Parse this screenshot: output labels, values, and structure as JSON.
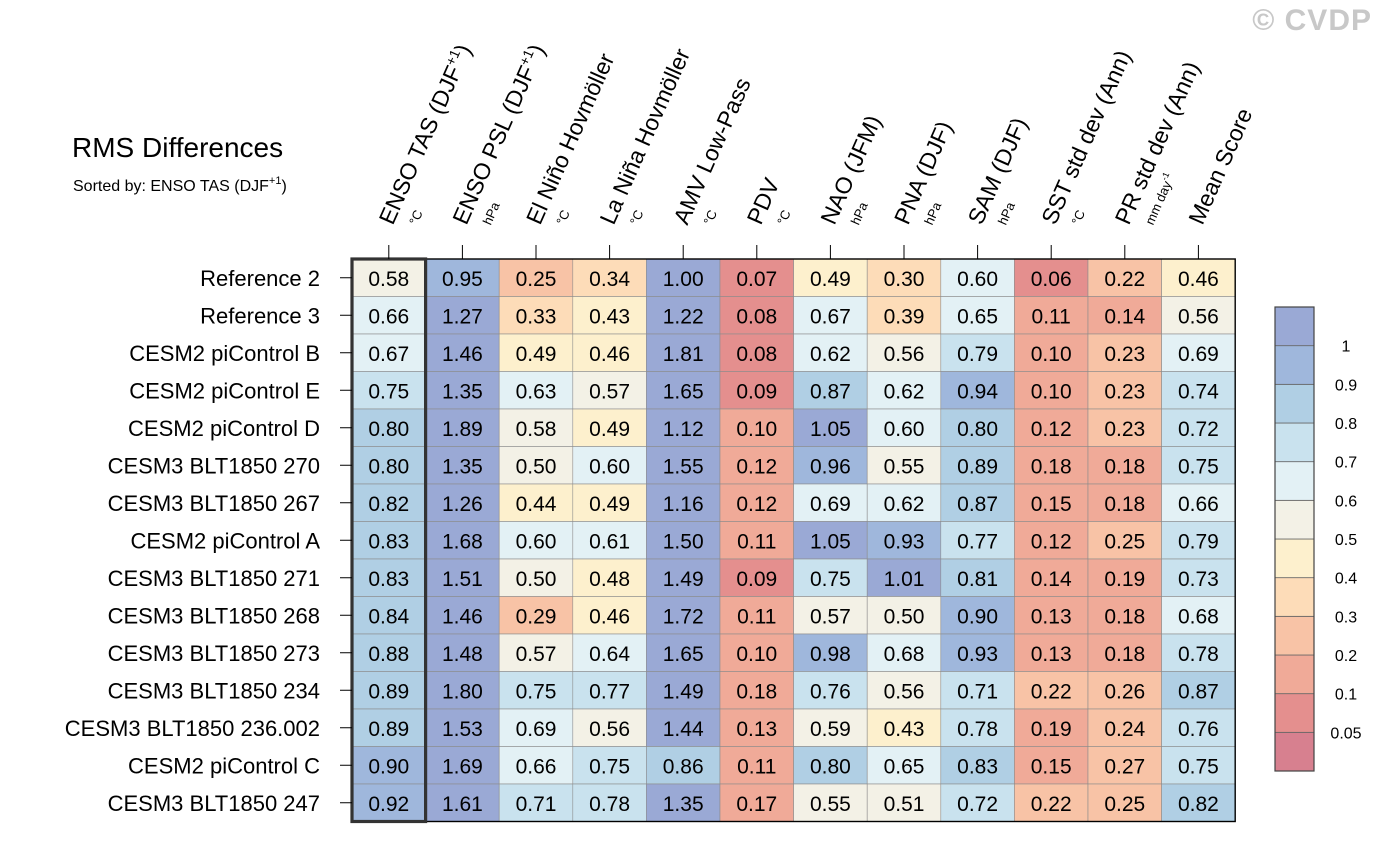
{
  "chart_data": {
    "type": "heatmap",
    "title": "RMS Differences",
    "subtitle": {
      "prefix": "Sorted by: ENSO TAS (DJF",
      "sup": "+1",
      "suffix": ")"
    },
    "watermark": "© CVDP",
    "columns": [
      {
        "label": "ENSO TAS (DJF",
        "sup": "+1",
        "close": ")",
        "unit": "°C"
      },
      {
        "label": "ENSO PSL (DJF",
        "sup": "+1",
        "close": ")",
        "unit": "hPa"
      },
      {
        "label": "El Niño Hovmöller",
        "unit": "°C"
      },
      {
        "label": "La Niña Hovmöller",
        "unit": "°C"
      },
      {
        "label": "AMV Low-Pass",
        "unit": "°C"
      },
      {
        "label": "PDV",
        "unit": "°C"
      },
      {
        "label": "NAO (JFM)",
        "unit": "hPa"
      },
      {
        "label": "PNA (DJF)",
        "unit": "hPa"
      },
      {
        "label": "SAM (DJF)",
        "unit": "hPa"
      },
      {
        "label": "SST std dev (Ann)",
        "unit": "°C"
      },
      {
        "label": "PR std dev (Ann)",
        "unit": "mm day",
        "unit_sup": "-1"
      },
      {
        "label": "Mean Score",
        "unit": ""
      }
    ],
    "rows": [
      {
        "name": "Reference 2",
        "values": [
          0.58,
          0.95,
          0.25,
          0.34,
          1.0,
          0.07,
          0.49,
          0.3,
          0.6,
          0.06,
          0.22,
          0.46
        ]
      },
      {
        "name": "Reference 3",
        "values": [
          0.66,
          1.27,
          0.33,
          0.43,
          1.22,
          0.08,
          0.67,
          0.39,
          0.65,
          0.11,
          0.14,
          0.56
        ]
      },
      {
        "name": "CESM2 piControl B",
        "values": [
          0.67,
          1.46,
          0.49,
          0.46,
          1.81,
          0.08,
          0.62,
          0.56,
          0.79,
          0.1,
          0.23,
          0.69
        ]
      },
      {
        "name": "CESM2 piControl E",
        "values": [
          0.75,
          1.35,
          0.63,
          0.57,
          1.65,
          0.09,
          0.87,
          0.62,
          0.94,
          0.1,
          0.23,
          0.74
        ]
      },
      {
        "name": "CESM2 piControl D",
        "values": [
          0.8,
          1.89,
          0.58,
          0.49,
          1.12,
          0.1,
          1.05,
          0.6,
          0.8,
          0.12,
          0.23,
          0.72
        ]
      },
      {
        "name": "CESM3 BLT1850 270",
        "values": [
          0.8,
          1.35,
          0.5,
          0.6,
          1.55,
          0.12,
          0.96,
          0.55,
          0.89,
          0.18,
          0.18,
          0.75
        ]
      },
      {
        "name": "CESM3 BLT1850 267",
        "values": [
          0.82,
          1.26,
          0.44,
          0.49,
          1.16,
          0.12,
          0.69,
          0.62,
          0.87,
          0.15,
          0.18,
          0.66
        ]
      },
      {
        "name": "CESM2 piControl A",
        "values": [
          0.83,
          1.68,
          0.6,
          0.61,
          1.5,
          0.11,
          1.05,
          0.93,
          0.77,
          0.12,
          0.25,
          0.79
        ]
      },
      {
        "name": "CESM3 BLT1850 271",
        "values": [
          0.83,
          1.51,
          0.5,
          0.48,
          1.49,
          0.09,
          0.75,
          1.01,
          0.81,
          0.14,
          0.19,
          0.73
        ]
      },
      {
        "name": "CESM3 BLT1850 268",
        "values": [
          0.84,
          1.46,
          0.29,
          0.46,
          1.72,
          0.11,
          0.57,
          0.5,
          0.9,
          0.13,
          0.18,
          0.68
        ]
      },
      {
        "name": "CESM3 BLT1850 273",
        "values": [
          0.88,
          1.48,
          0.57,
          0.64,
          1.65,
          0.1,
          0.98,
          0.68,
          0.93,
          0.13,
          0.18,
          0.78
        ]
      },
      {
        "name": "CESM3 BLT1850 234",
        "values": [
          0.89,
          1.8,
          0.75,
          0.77,
          1.49,
          0.18,
          0.76,
          0.56,
          0.71,
          0.22,
          0.26,
          0.87
        ]
      },
      {
        "name": "CESM3 BLT1850 236.002",
        "values": [
          0.89,
          1.53,
          0.69,
          0.56,
          1.44,
          0.13,
          0.59,
          0.43,
          0.78,
          0.19,
          0.24,
          0.76
        ]
      },
      {
        "name": "CESM2 piControl C",
        "values": [
          0.9,
          1.69,
          0.66,
          0.75,
          0.86,
          0.11,
          0.8,
          0.65,
          0.83,
          0.15,
          0.27,
          0.75
        ]
      },
      {
        "name": "CESM3 BLT1850 247",
        "values": [
          0.92,
          1.61,
          0.71,
          0.78,
          1.35,
          0.17,
          0.55,
          0.51,
          0.72,
          0.22,
          0.25,
          0.82
        ]
      }
    ],
    "highlighted_column": 0,
    "colorbar": {
      "levels": [
        0.05,
        0.1,
        0.2,
        0.3,
        0.4,
        0.5,
        0.6,
        0.7,
        0.8,
        0.9,
        1
      ],
      "labels": [
        "0.05",
        "0.1",
        "0.2",
        "0.3",
        "0.4",
        "0.5",
        "0.6",
        "0.7",
        "0.8",
        "0.9",
        "1"
      ],
      "colors": [
        "#d7808f",
        "#e48f8e",
        "#f0aa98",
        "#f8c3a6",
        "#fddcb8",
        "#fdf0cd",
        "#f3f1e6",
        "#e3f1f5",
        "#c9e2ee",
        "#b0cfe4",
        "#9fb7dc",
        "#9aa9d5"
      ]
    }
  }
}
